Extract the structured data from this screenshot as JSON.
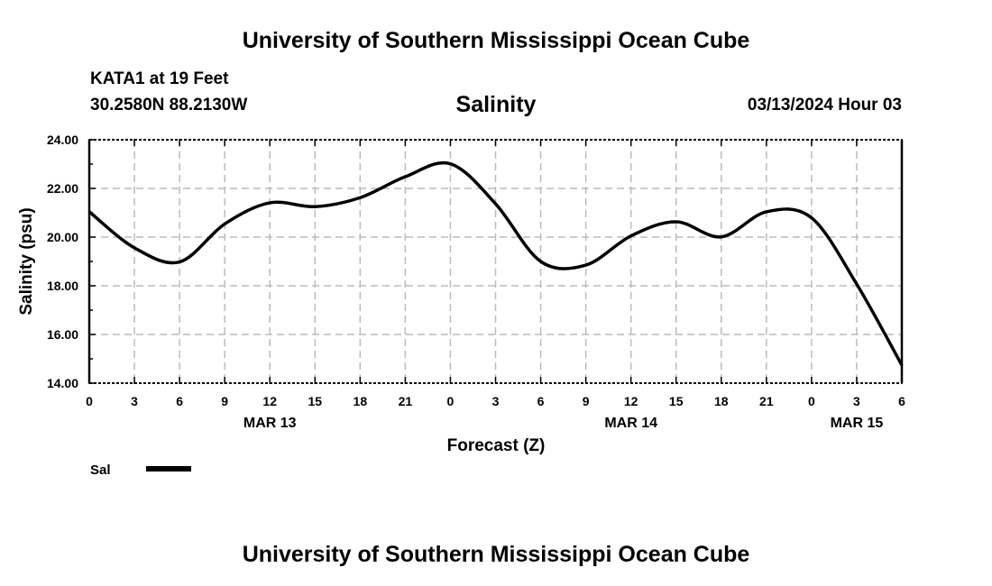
{
  "header": {
    "title": "University of Southern Mississippi Ocean Cube",
    "station": "KATA1 at 19 Feet",
    "coordinates": "30.2580N  88.2130W",
    "chart_title": "Salinity",
    "date": "03/13/2024 Hour 03"
  },
  "footer": {
    "title": "University of Southern Mississippi Ocean Cube"
  },
  "chart_data": {
    "type": "line",
    "title": "Salinity",
    "xlabel": "Forecast (Z)",
    "ylabel": "Salinity (psu)",
    "ylim": [
      14,
      24
    ],
    "yticks": [
      "14.00",
      "16.00",
      "18.00",
      "20.00",
      "22.00",
      "24.00"
    ],
    "xlim_hours": [
      0,
      54
    ],
    "xtick_labels": [
      "0",
      "3",
      "6",
      "9",
      "12",
      "15",
      "18",
      "21",
      "0",
      "3",
      "6",
      "9",
      "12",
      "15",
      "18",
      "21",
      "0",
      "3",
      "6"
    ],
    "day_labels": [
      {
        "label": "MAR 13",
        "hour": 12
      },
      {
        "label": "MAR 14",
        "hour": 36
      },
      {
        "label": "MAR 15",
        "hour": 51
      }
    ],
    "grid": true,
    "legend": {
      "position": "bottom-left",
      "entries": [
        "Sal"
      ]
    },
    "series": [
      {
        "name": "Sal",
        "color": "#000000",
        "x": [
          0,
          3,
          6,
          9,
          12,
          15,
          18,
          21,
          24,
          27,
          30,
          33,
          36,
          39,
          42,
          45,
          48,
          51,
          54
        ],
        "values": [
          21.04,
          19.56,
          18.98,
          20.54,
          21.41,
          21.25,
          21.62,
          22.48,
          23.01,
          21.37,
          19.0,
          18.85,
          20.05,
          20.63,
          20.01,
          21.04,
          20.79,
          18.07,
          14.74
        ]
      }
    ]
  }
}
